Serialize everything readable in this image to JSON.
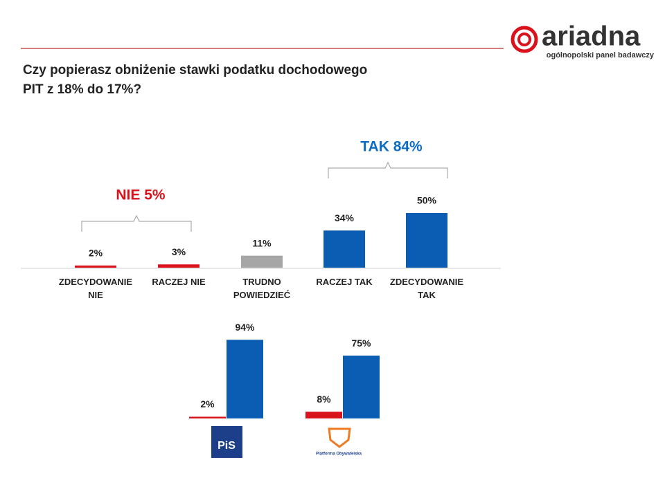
{
  "logo": {
    "name": "ariadna",
    "tagline": "ogólnopolski panel badawczy"
  },
  "title": [
    "Czy popierasz obniżenie stawki podatku dochodowego",
    "PIT z 18% do 17%?"
  ],
  "chart_data": [
    {
      "type": "bar",
      "categories": [
        "ZDECYDOWANIE NIE",
        "RACZEJ NIE",
        "TRUDNO POWIEDZIEĆ",
        "RACZEJ TAK",
        "ZDECYDOWANIE TAK"
      ],
      "values": [
        2,
        3,
        11,
        34,
        50
      ],
      "value_labels": [
        "2%",
        "3%",
        "11%",
        "34%",
        "50%"
      ],
      "colors": [
        "#d9121b",
        "#d9121b",
        "#a6a6a6",
        "#0b5db3",
        "#0b5db3"
      ],
      "annotations": [
        {
          "text": "NIE 5%",
          "color": "#d9121b"
        },
        {
          "text": "TAK 84%",
          "color": "#0b6cc4"
        }
      ]
    },
    {
      "type": "grouped_bar",
      "categories": [
        "PiS",
        "Platforma Obywatelska"
      ],
      "series": [
        {
          "color": "#d9121b",
          "values": [
            2,
            8
          ],
          "value_labels": [
            "2%",
            "8%"
          ]
        },
        {
          "color": "#0b5db3",
          "values": [
            94,
            75
          ],
          "value_labels": [
            "94%",
            "75%"
          ]
        }
      ]
    }
  ]
}
